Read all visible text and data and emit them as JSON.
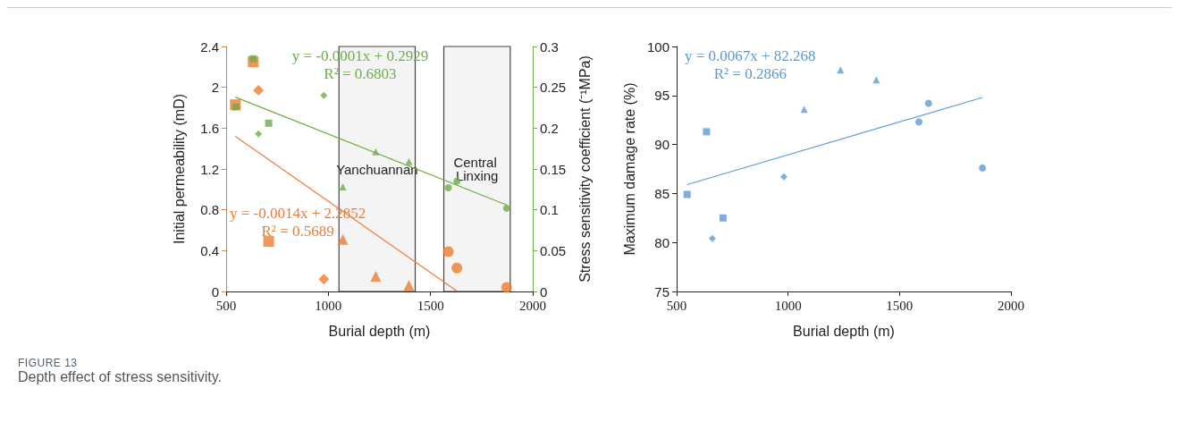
{
  "chart_data": [
    {
      "type": "scatter",
      "xlabel": "Burial depth (m)",
      "ylabel": "Initial permeability (mD)",
      "y2label": "Stress sensitivity coefficient (⁻¹MPa)",
      "xlim": [
        500,
        2000
      ],
      "xticks": [
        500,
        1000,
        1500,
        2000
      ],
      "ylim": [
        0,
        2.4
      ],
      "yticks": [
        0,
        0.4,
        0.8,
        1.2,
        1.6,
        2,
        2.4
      ],
      "y2lim": [
        0,
        0.3
      ],
      "y2ticks": [
        0,
        0.05,
        0.1,
        0.15,
        0.2,
        0.25,
        0.3
      ],
      "series": [
        {
          "color": "#ed7d31",
          "marker": "square",
          "x": [
            545,
            632,
            708
          ],
          "values": [
            1.83,
            2.25,
            0.49
          ]
        },
        {
          "color": "#ed7d31",
          "marker": "diamond",
          "x": [
            658,
            978
          ],
          "values": [
            1.97,
            0.12
          ]
        },
        {
          "color": "#ed7d31",
          "marker": "triangle",
          "x": [
            1071,
            1232,
            1394
          ],
          "values": [
            0.51,
            0.15,
            0.06
          ]
        },
        {
          "color": "#ed7d31",
          "marker": "circle",
          "x": [
            1587,
            1629,
            1872
          ],
          "values": [
            0.39,
            0.23,
            0.04
          ]
        },
        {
          "type": "line",
          "color": "#ed7d31",
          "x": [
            545,
            1632
          ],
          "values": [
            1.52,
            0
          ]
        },
        {
          "color": "#70ad47",
          "marker": "square",
          "axis": "y2",
          "x": [
            548,
            632,
            708
          ],
          "values": [
            0.226,
            0.285,
            0.206
          ]
        },
        {
          "color": "#70ad47",
          "marker": "diamond",
          "axis": "y2",
          "x": [
            658,
            978
          ],
          "values": [
            0.193,
            0.24
          ]
        },
        {
          "color": "#70ad47",
          "marker": "triangle",
          "axis": "y2",
          "x": [
            1071,
            1232,
            1394
          ],
          "values": [
            0.128,
            0.171,
            0.159
          ]
        },
        {
          "color": "#70ad47",
          "marker": "circle",
          "axis": "y2",
          "x": [
            1587,
            1629,
            1872
          ],
          "values": [
            0.127,
            0.135,
            0.102
          ]
        },
        {
          "type": "line",
          "color": "#70ad47",
          "axis": "y2",
          "x": [
            545,
            1872
          ],
          "values": [
            0.238,
            0.106
          ]
        }
      ],
      "bands": [
        {
          "axis": "x",
          "from": 1052,
          "to": 1425,
          "label": "Yanchuannan",
          "color": "#f4f4f4"
        },
        {
          "axis": "x",
          "from": 1565,
          "to": 1890,
          "label": "Central Linxing",
          "color": "#f4f4f4"
        }
      ],
      "annotations": [
        "y = -0.0014x + 2.2852\nR² = 0.5689",
        "y = -0.0001x + 0.2929\nR² = 0.6803",
        "FIGURE 13",
        "Depth effect of stress sensitivity."
      ]
    },
    {
      "type": "scatter",
      "xlabel": "Burial depth (m)",
      "ylabel": "Maximum damage rate (%)",
      "xlim": [
        500,
        2000
      ],
      "xticks": [
        500,
        1000,
        1500,
        2000
      ],
      "ylim": [
        75,
        100
      ],
      "yticks": [
        75,
        80,
        85,
        90,
        95,
        100
      ],
      "series": [
        {
          "color": "#5b9bd5",
          "marker": "square",
          "x": [
            547,
            634,
            708
          ],
          "values": [
            84.9,
            91.3,
            82.5
          ]
        },
        {
          "color": "#5b9bd5",
          "marker": "diamond",
          "x": [
            660,
            981
          ],
          "values": [
            80.4,
            86.7
          ]
        },
        {
          "color": "#5b9bd5",
          "marker": "triangle",
          "x": [
            1072,
            1235,
            1396
          ],
          "values": [
            93.6,
            97.6,
            96.6
          ]
        },
        {
          "color": "#5b9bd5",
          "marker": "circle",
          "x": [
            1587,
            1630,
            1872
          ],
          "values": [
            92.3,
            94.2,
            87.6
          ]
        },
        {
          "type": "line",
          "color": "#5b9bd5",
          "x": [
            547,
            1872
          ],
          "values": [
            85.9,
            94.8
          ]
        }
      ],
      "annotations": [
        "y = 0.0067x + 82.268\nR² = 0.2866"
      ]
    }
  ]
}
